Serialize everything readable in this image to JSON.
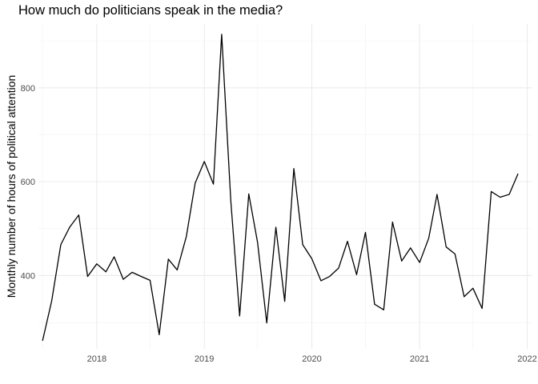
{
  "chart_data": {
    "type": "line",
    "title": "How much do politicians speak in the media?",
    "xlabel": "",
    "ylabel": "Monthly number of hours of political attention",
    "x_ticks": [
      "2018",
      "2019",
      "2020",
      "2021",
      "2022"
    ],
    "y_ticks": [
      400,
      600,
      800
    ],
    "xlim": [
      "2017-06-17",
      "2022-01-16"
    ],
    "ylim": [
      244,
      936
    ],
    "grid": true,
    "legend": "none",
    "line_color": "#000000",
    "series": [
      {
        "x": [
          "2017-07-01",
          "2017-08-01",
          "2017-09-01",
          "2017-10-01",
          "2017-11-01",
          "2017-12-01",
          "2018-01-01",
          "2018-02-01",
          "2018-03-01",
          "2018-04-01",
          "2018-05-01",
          "2018-06-01",
          "2018-07-01",
          "2018-08-01",
          "2018-09-01",
          "2018-10-01",
          "2018-11-01",
          "2018-12-01",
          "2019-01-01",
          "2019-02-01",
          "2019-03-01",
          "2019-04-01",
          "2019-05-01",
          "2019-06-01",
          "2019-07-01",
          "2019-08-01",
          "2019-09-01",
          "2019-10-01",
          "2019-11-01",
          "2019-12-01",
          "2020-01-01",
          "2020-02-01",
          "2020-03-01",
          "2020-04-01",
          "2020-05-01",
          "2020-06-01",
          "2020-07-01",
          "2020-08-01",
          "2020-09-01",
          "2020-10-01",
          "2020-11-01",
          "2020-12-01",
          "2021-01-01",
          "2021-02-01",
          "2021-03-01",
          "2021-04-01",
          "2021-05-01",
          "2021-06-01",
          "2021-07-01",
          "2021-08-01",
          "2021-09-01",
          "2021-10-01",
          "2021-11-01",
          "2021-12-01"
        ],
        "y": [
          261,
          346,
          466,
          503,
          529,
          398,
          425,
          408,
          440,
          392,
          407,
          398,
          390,
          274,
          435,
          412,
          483,
          597,
          643,
          595,
          914,
          559,
          314,
          574,
          470,
          299,
          503,
          345,
          628,
          466,
          436,
          389,
          398,
          416,
          473,
          402,
          492,
          339,
          327,
          514,
          431,
          459,
          428,
          480,
          573,
          461,
          446,
          355,
          373,
          330,
          579,
          567,
          573,
          617
        ]
      }
    ]
  }
}
